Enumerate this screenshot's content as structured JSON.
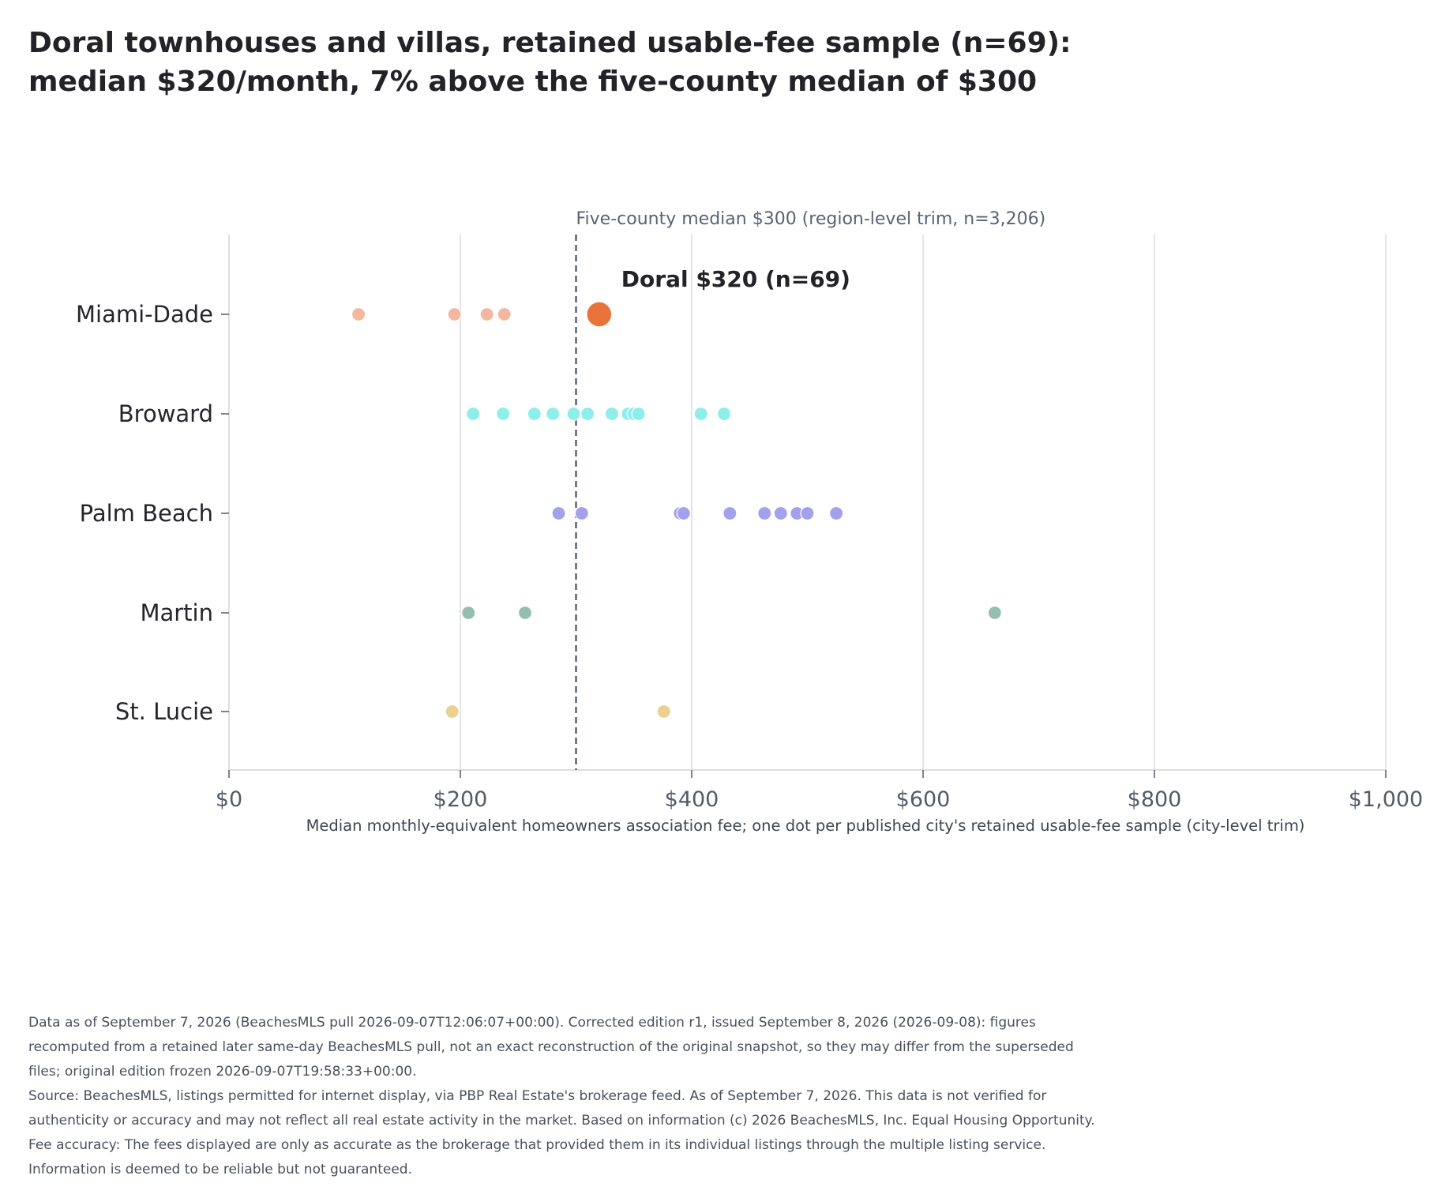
{
  "title_lines": [
    "Doral townhouses and villas, retained usable-fee sample (n=69):",
    "median $320/month, 7% above the five-county median of $300"
  ],
  "footnote": {
    "line1": "Data as of September 7, 2026 (BeachesMLS pull 2026-09-07T12:06:07+00:00). Corrected edition r1, issued September 8, 2026 (2026-09-08): figures recomputed from a retained later same-day BeachesMLS pull, not an exact reconstruction of the original snapshot, so they may differ from the superseded files; original edition frozen 2026-09-07T19:58:33+00:00.",
    "line2": "Source: BeachesMLS, listings permitted for internet display, via PBP Real Estate's brokerage feed. As of September 7, 2026. This data is not verified for authenticity or accuracy and may not reflect all real estate activity in the market. Based on information (c) 2026 BeachesMLS, Inc. Equal Housing Opportunity. Fee accuracy: The fees displayed are only as accurate as the brokerage that provided them in its individual listings through the multiple listing service. Information is deemed to be reliable but not guaranteed."
  },
  "chart_data": {
    "type": "scatter",
    "xlabel": "Median monthly-equivalent homeowners association fee; one dot per published city's retained usable-fee sample (city-level trim)",
    "xlim": [
      0,
      1000
    ],
    "x_ticks": [
      0,
      200,
      400,
      600,
      800,
      1000
    ],
    "x_tick_labels": [
      "$0",
      "$200",
      "$400",
      "$600",
      "$800",
      "$1,000"
    ],
    "grid": true,
    "categories": [
      "Miami-Dade",
      "Broward",
      "Palm Beach",
      "Martin",
      "St. Lucie"
    ],
    "series": [
      {
        "name": "Miami-Dade",
        "color": "#f2b8a0",
        "values": [
          112,
          195,
          223,
          238
        ]
      },
      {
        "name": "Broward",
        "color": "#8eeeea",
        "values": [
          211,
          237,
          264,
          280,
          298,
          310,
          331,
          345,
          350,
          354,
          408,
          428
        ]
      },
      {
        "name": "Palm Beach",
        "color": "#a3a0ec",
        "values": [
          285,
          305,
          390,
          393,
          433,
          463,
          477,
          491,
          500,
          525
        ]
      },
      {
        "name": "Martin",
        "color": "#94bfb0",
        "values": [
          207,
          256,
          662
        ]
      },
      {
        "name": "St. Lucie",
        "color": "#ecd08f",
        "values": [
          193,
          376
        ]
      }
    ],
    "highlight": {
      "category": "Miami-Dade",
      "value": 320,
      "label": "Doral $320 (n=69)",
      "color": "#e8743c"
    },
    "reference_line": {
      "value": 300,
      "label": "Five-county median $300 (region-level trim, n=3,206)",
      "color": "#5a6275"
    }
  }
}
